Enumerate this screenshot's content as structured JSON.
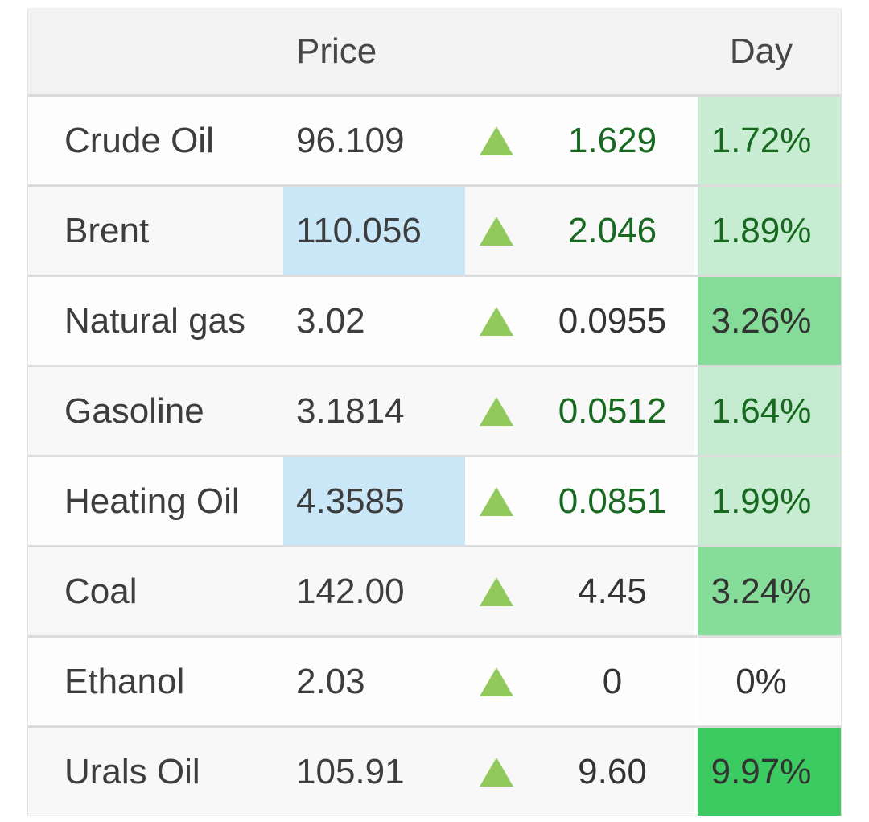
{
  "header": {
    "price_label": "Price",
    "day_label": "Day"
  },
  "rows": [
    {
      "name": "Crude Oil",
      "price": "96.109",
      "highlighted": false,
      "direction": "up",
      "change": "1.629",
      "change_style": "green",
      "day": "1.72%",
      "day_style": "green",
      "day_bg": "#c9edd3"
    },
    {
      "name": "Brent",
      "price": "110.056",
      "highlighted": true,
      "direction": "up",
      "change": "2.046",
      "change_style": "green",
      "day": "1.89%",
      "day_style": "green",
      "day_bg": "#c6ecd1"
    },
    {
      "name": "Natural gas",
      "price": "3.02",
      "highlighted": false,
      "direction": "up",
      "change": "0.0955",
      "change_style": "dark",
      "day": "3.26%",
      "day_style": "dark",
      "day_bg": "#85dc98"
    },
    {
      "name": "Gasoline",
      "price": "3.1814",
      "highlighted": false,
      "direction": "up",
      "change": "0.0512",
      "change_style": "green",
      "day": "1.64%",
      "day_style": "green",
      "day_bg": "#c4ebcf"
    },
    {
      "name": "Heating Oil",
      "price": "4.3585",
      "highlighted": true,
      "direction": "up",
      "change": "0.0851",
      "change_style": "green",
      "day": "1.99%",
      "day_style": "green",
      "day_bg": "#c7ecd2"
    },
    {
      "name": "Coal",
      "price": "142.00",
      "highlighted": false,
      "direction": "up",
      "change": "4.45",
      "change_style": "dark",
      "day": "3.24%",
      "day_style": "dark",
      "day_bg": "#86dc99"
    },
    {
      "name": "Ethanol",
      "price": "2.03",
      "highlighted": false,
      "direction": "up",
      "change": "0",
      "change_style": "dark",
      "day": "0%",
      "day_style": "dark",
      "day_bg": "transparent"
    },
    {
      "name": "Urals Oil",
      "price": "105.91",
      "highlighted": false,
      "direction": "up",
      "change": "9.60",
      "change_style": "dark",
      "day": "9.97%",
      "day_style": "dark",
      "day_bg": "#3bcb61"
    }
  ],
  "colors": {
    "price_highlight": "#c9e7f6",
    "triangle": "#92c95c",
    "green_text": "#17691f",
    "header_bg": "#f3f3f3",
    "row_alt_bg": "#f8f8f8",
    "separator": "#dcdcdc"
  }
}
